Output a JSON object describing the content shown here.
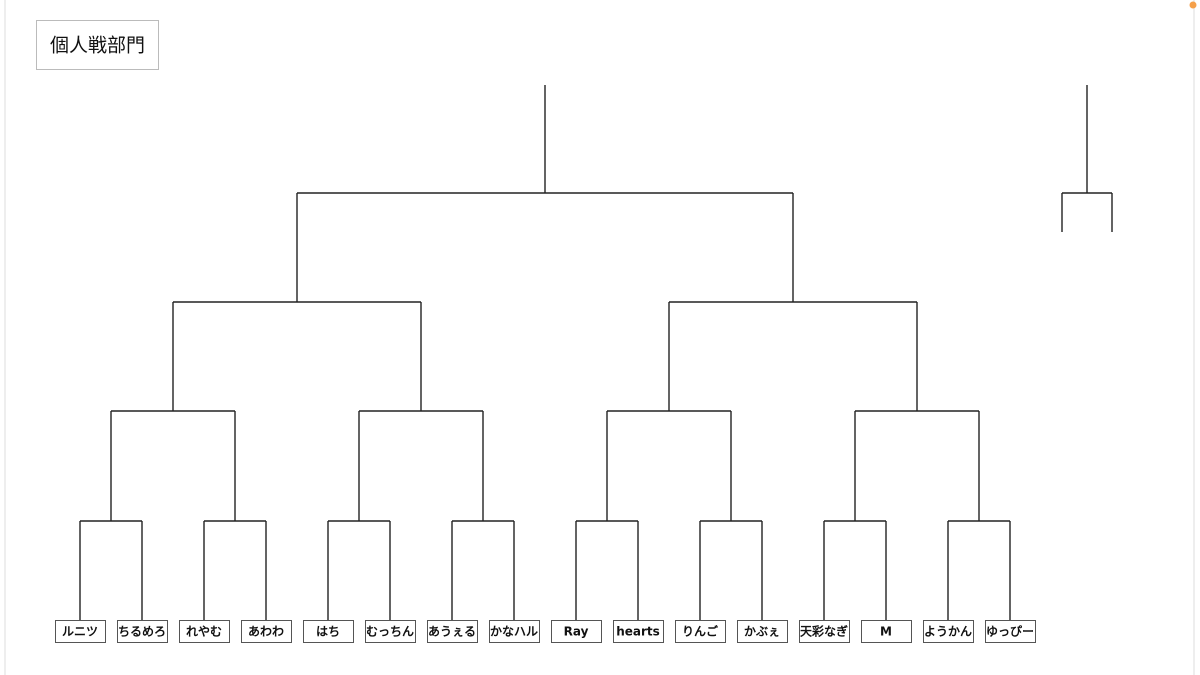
{
  "title": "個人戦部門",
  "players": [
    "ルニツ",
    "ちるめろ",
    "れやむ",
    "あわわ",
    "はち",
    "むっちん",
    "あうぇる",
    "かなハル",
    "Ray",
    "hearts",
    "りんご",
    "かぶぇ",
    "天彩なぎ",
    "M",
    "ようかん",
    "ゆっぴー"
  ]
}
